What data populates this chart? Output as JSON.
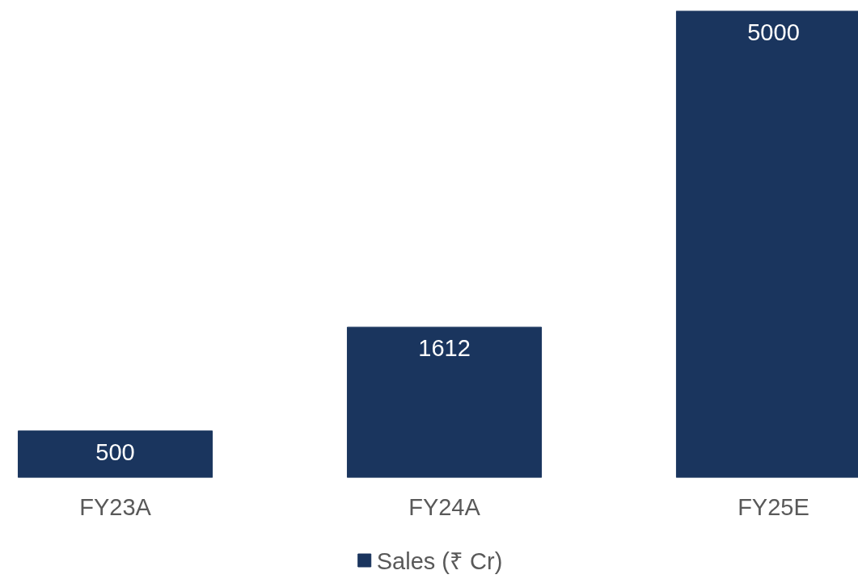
{
  "chart_data": {
    "type": "bar",
    "categories": [
      "FY23A",
      "FY24A",
      "FY25E"
    ],
    "series": [
      {
        "name": "Sales (₹ Cr)",
        "color": "#1a355e",
        "values": [
          500,
          1612,
          5000
        ]
      }
    ],
    "data_labels": true,
    "legend": "bottom",
    "grid": false,
    "tick_labels": "x"
  }
}
